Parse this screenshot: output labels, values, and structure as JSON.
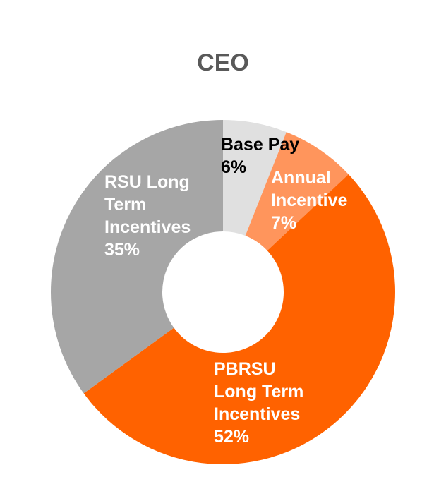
{
  "chart_data": {
    "type": "pie",
    "variant": "donut",
    "title": "CEO",
    "legend": "none",
    "slices": [
      {
        "label": "Base Pay",
        "label_lines": [
          "Base Pay",
          "6%"
        ],
        "value": 6,
        "color": "#e0e0e0",
        "text_color": "#000000"
      },
      {
        "label": "Annual Incentive",
        "label_lines": [
          "Annual",
          "Incentive",
          "7%"
        ],
        "value": 7,
        "color": "#ff955c",
        "text_color": "#ffffff"
      },
      {
        "label": "PBRSU Long Term Incentives",
        "label_lines": [
          "PBRSU",
          "Long Term",
          "Incentives",
          "52%"
        ],
        "value": 52,
        "color": "#ff6200",
        "text_color": "#ffffff"
      },
      {
        "label": "RSU Long Term Incentives",
        "label_lines": [
          "RSU Long",
          "Term",
          "Incentives",
          "35%"
        ],
        "value": 35,
        "color": "#a6a6a6",
        "text_color": "#ffffff"
      }
    ]
  }
}
